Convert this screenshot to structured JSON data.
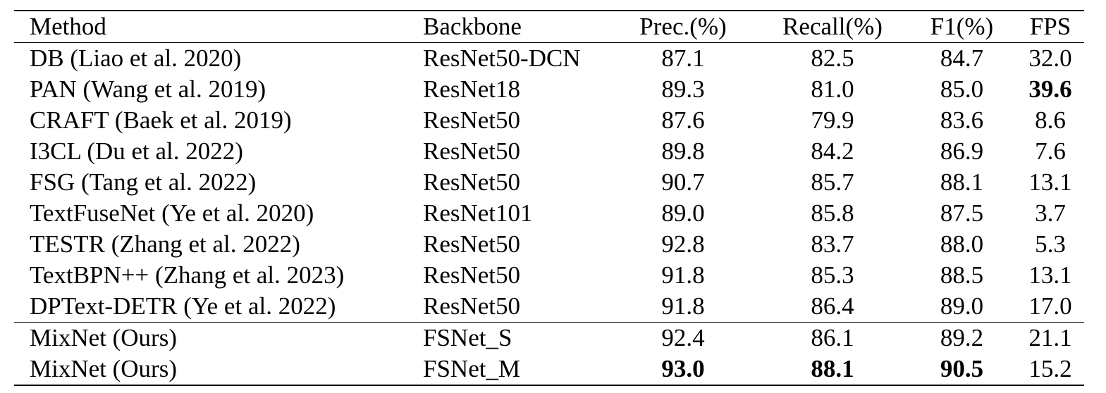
{
  "table": {
    "headers": [
      "Method",
      "Backbone",
      "Prec.(%)",
      "Recall(%)",
      "F1(%)",
      "FPS"
    ],
    "rows": [
      {
        "method": "DB (Liao et al. 2020)",
        "backbone": "ResNet50-DCN",
        "prec": "87.1",
        "recall": "82.5",
        "f1": "84.7",
        "fps": "32.0"
      },
      {
        "method": "PAN (Wang et al. 2019)",
        "backbone": "ResNet18",
        "prec": "89.3",
        "recall": "81.0",
        "f1": "85.0",
        "fps": "39.6"
      },
      {
        "method": "CRAFT (Baek et al. 2019)",
        "backbone": "ResNet50",
        "prec": "87.6",
        "recall": "79.9",
        "f1": "83.6",
        "fps": "8.6"
      },
      {
        "method": "I3CL (Du et al. 2022)",
        "backbone": "ResNet50",
        "prec": "89.8",
        "recall": "84.2",
        "f1": "86.9",
        "fps": "7.6"
      },
      {
        "method": "FSG (Tang et al. 2022)",
        "backbone": "ResNet50",
        "prec": "90.7",
        "recall": "85.7",
        "f1": "88.1",
        "fps": "13.1"
      },
      {
        "method": "TextFuseNet (Ye et al. 2020)",
        "backbone": "ResNet101",
        "prec": "89.0",
        "recall": "85.8",
        "f1": "87.5",
        "fps": "3.7"
      },
      {
        "method": "TESTR (Zhang et al. 2022)",
        "backbone": "ResNet50",
        "prec": "92.8",
        "recall": "83.7",
        "f1": "88.0",
        "fps": "5.3"
      },
      {
        "method": "TextBPN++ (Zhang et al. 2023)",
        "backbone": "ResNet50",
        "prec": "91.8",
        "recall": "85.3",
        "f1": "88.5",
        "fps": "13.1"
      },
      {
        "method": "DPText-DETR (Ye et al. 2022)",
        "backbone": "ResNet50",
        "prec": "91.8",
        "recall": "86.4",
        "f1": "89.0",
        "fps": "17.0"
      },
      {
        "method": "MixNet (Ours)",
        "backbone": "FSNet_S",
        "prec": "92.4",
        "recall": "86.1",
        "f1": "89.2",
        "fps": "21.1"
      },
      {
        "method": "MixNet (Ours)",
        "backbone": "FSNet_M",
        "prec": "93.0",
        "recall": "88.1",
        "f1": "90.5",
        "fps": "15.2"
      }
    ]
  }
}
